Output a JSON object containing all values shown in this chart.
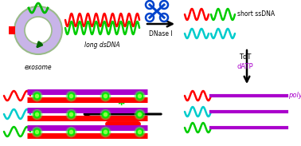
{
  "bg_color": "#ffffff",
  "colors": {
    "red": "#ff0000",
    "green": "#00dd00",
    "lime": "#44ff00",
    "cyan": "#00cccc",
    "purple": "#aa00cc",
    "dark_green": "#006600",
    "blue": "#0044cc"
  },
  "labels": {
    "exosome": "exosome",
    "long_dsDNA": "long dsDNA",
    "short_ssDNA": "short ssDNA",
    "DNaseI": "DNase I",
    "TdT": "TdT",
    "dATP": "dATP",
    "polyA": "polyA"
  }
}
